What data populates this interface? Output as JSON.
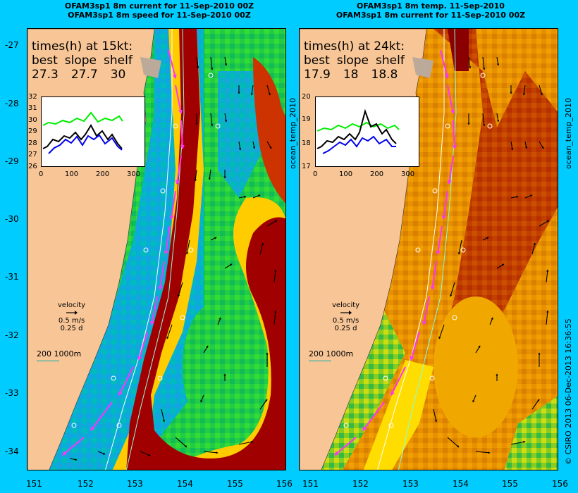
{
  "left": {
    "title_line1": "OFAM3sp1 8m current for 11-Sep-2010 00Z",
    "title_line2": "OFAM3sp1 8m speed for 11-Sep-2010 00Z",
    "times_heading": "times(h) at 15kt:",
    "labels": [
      "best",
      "slope",
      "shelf"
    ],
    "values": [
      "27.3",
      "27.7",
      "30"
    ],
    "inset_y_ticks": [
      "32",
      "31",
      "30",
      "29",
      "28",
      "27",
      "26"
    ],
    "inset_x_ticks": [
      "0",
      "100",
      "200",
      "300"
    ],
    "velocity_label": "velocity",
    "velocity_speed": "0.5 m/s",
    "velocity_time": "0.25 d",
    "depth_scale": "200  1000m",
    "side_label": "ocean_temp_2010"
  },
  "right": {
    "title_line1": "OFAM3sp1 8m temp. 11-Sep-2010",
    "title_line2": "OFAM3sp1 8m current for 11-Sep-2010 00Z",
    "times_heading": "times(h) at 24kt:",
    "labels": [
      "best",
      "slope",
      "shelf"
    ],
    "values": [
      "17.9",
      "18",
      "18.8"
    ],
    "inset_y_ticks": [
      "20",
      "19",
      "18",
      "17"
    ],
    "inset_x_ticks": [
      "0",
      "100",
      "200",
      "300"
    ],
    "velocity_label": "velocity",
    "velocity_speed": "0.5 m/s",
    "velocity_time": "0.25 d",
    "depth_scale": "200  1000m",
    "side_label": "ocean_temp_2010"
  },
  "lat_ticks": [
    "-27",
    "-28",
    "-29",
    "-30",
    "-31",
    "-32",
    "-33",
    "-34"
  ],
  "lon_ticks": [
    "151",
    "152",
    "153",
    "154",
    "155",
    "156"
  ],
  "side_stamp": "© CSIRO 2013   06-Dec-2013 16:36:55",
  "colors": {
    "land": "#f7c596",
    "background": "#00ccff",
    "current_core": "#a00000",
    "route": "#ff33ff"
  }
}
